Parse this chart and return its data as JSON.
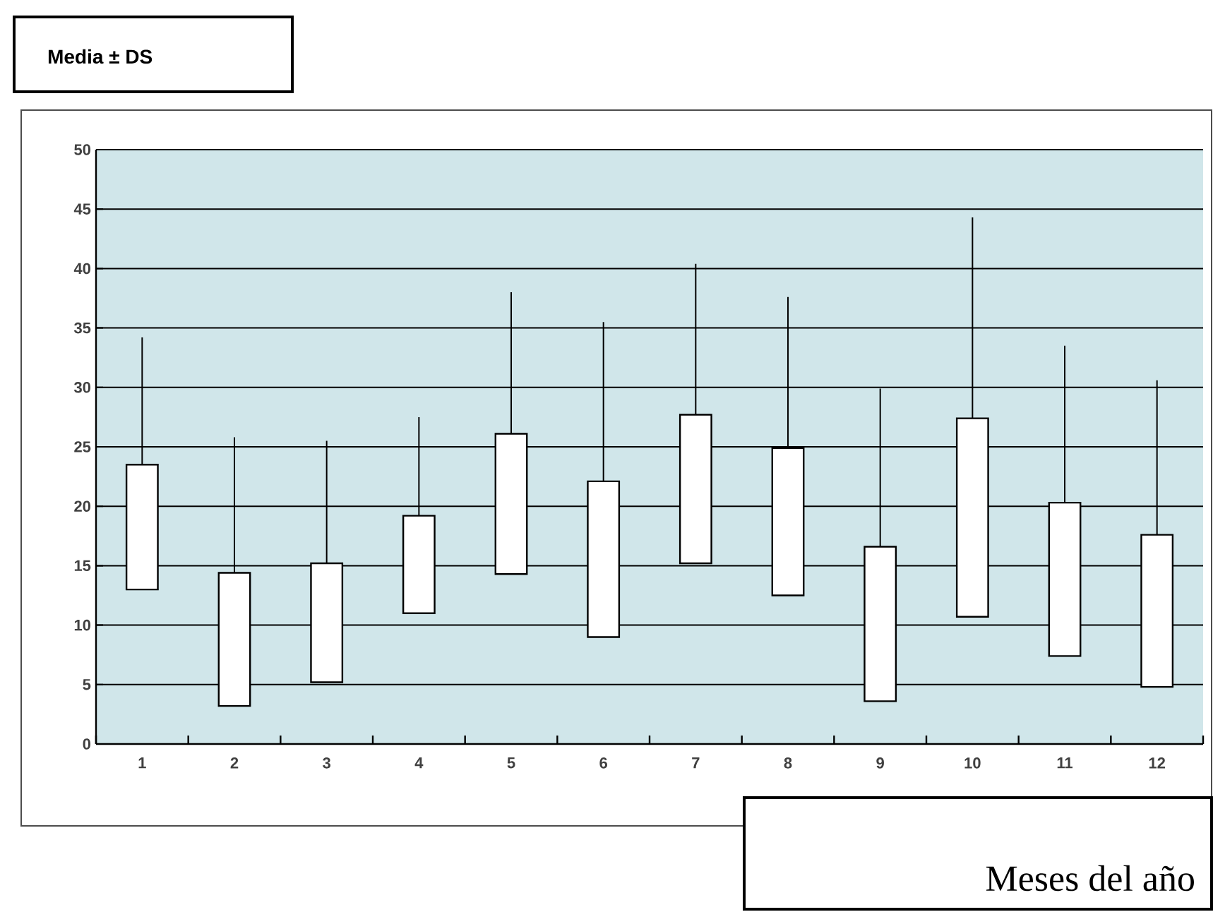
{
  "chart_data": {
    "type": "candlestick",
    "title": "Media ± DS",
    "xlabel": "Meses del año",
    "categories": [
      "1",
      "2",
      "3",
      "4",
      "5",
      "6",
      "7",
      "8",
      "9",
      "10",
      "11",
      "12"
    ],
    "ohlc": [
      [
        13,
        34.2,
        13,
        23.5
      ],
      [
        3.2,
        25.8,
        3.2,
        14.4
      ],
      [
        5.2,
        25.5,
        5.2,
        15.2
      ],
      [
        11,
        27.5,
        11,
        19.2
      ],
      [
        14.3,
        38,
        14.3,
        26.1
      ],
      [
        9,
        35.5,
        9,
        22.1
      ],
      [
        15.2,
        40.4,
        15.2,
        27.7
      ],
      [
        12.5,
        37.6,
        12.5,
        24.9
      ],
      [
        3.6,
        29.9,
        3.6,
        16.6
      ],
      [
        10.7,
        44.3,
        10.7,
        27.4
      ],
      [
        7.4,
        33.5,
        7.4,
        20.3
      ],
      [
        4.8,
        30.6,
        4.8,
        17.6
      ]
    ],
    "color": "#ffffff",
    "ylim": [
      0,
      50
    ],
    "yticks": [
      0,
      5,
      10,
      15,
      20,
      25,
      30,
      35,
      40,
      45,
      50
    ],
    "grid": "y"
  }
}
